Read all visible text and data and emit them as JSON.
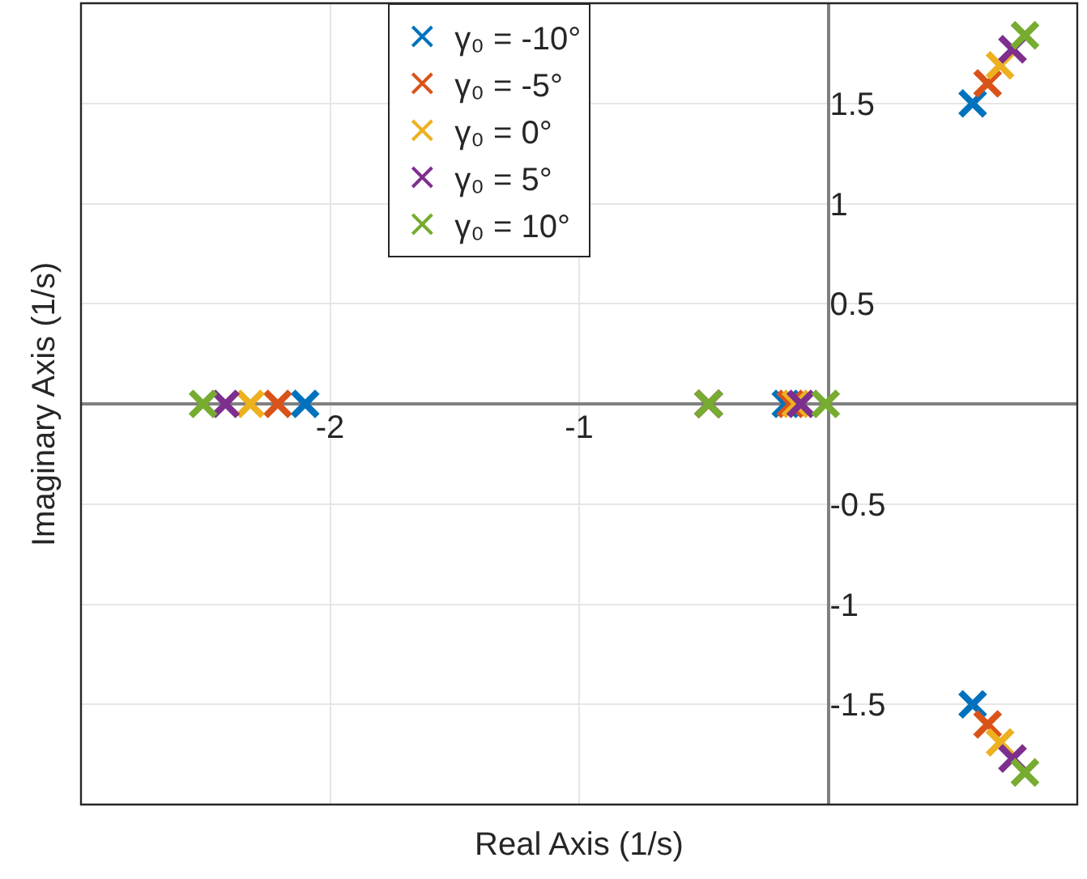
{
  "chart_data": {
    "type": "scatter",
    "xlabel": "Real Axis (1/s)",
    "ylabel": "Imaginary Axis (1/s)",
    "xlim": [
      -3,
      1
    ],
    "ylim": [
      -2,
      2
    ],
    "xticks": [
      -2,
      -1
    ],
    "yticks": [
      -1.5,
      -1,
      -0.5,
      0.5,
      1,
      1.5
    ],
    "grid": true,
    "legend": "top",
    "marker": "cross",
    "series": [
      {
        "name": "γ₀ = -10°",
        "color": "#0072bd",
        "x": [
          -2.1,
          -0.48,
          -0.17,
          0.58,
          0.58
        ],
        "values": [
          0,
          0,
          0,
          1.5,
          -1.5
        ]
      },
      {
        "name": "γ₀ = -5°",
        "color": "#d95319",
        "x": [
          -2.21,
          -0.48,
          -0.15,
          0.64,
          0.64
        ],
        "values": [
          0,
          0,
          0,
          1.6,
          -1.6
        ]
      },
      {
        "name": "γ₀ = 0°",
        "color": "#edb120",
        "x": [
          -2.32,
          -0.48,
          -0.13,
          0.69,
          0.69
        ],
        "values": [
          0,
          0,
          0,
          1.69,
          -1.69
        ]
      },
      {
        "name": "γ₀ = 5°",
        "color": "#7e2f8e",
        "x": [
          -2.42,
          -0.48,
          -0.11,
          0.74,
          0.74
        ],
        "values": [
          0,
          0,
          0,
          1.77,
          -1.77
        ]
      },
      {
        "name": "γ₀ = 10°",
        "color": "#77ac30",
        "x": [
          -2.51,
          -0.48,
          -0.01,
          0.79,
          0.79
        ],
        "values": [
          0,
          0,
          0,
          1.84,
          -1.84
        ]
      }
    ]
  }
}
